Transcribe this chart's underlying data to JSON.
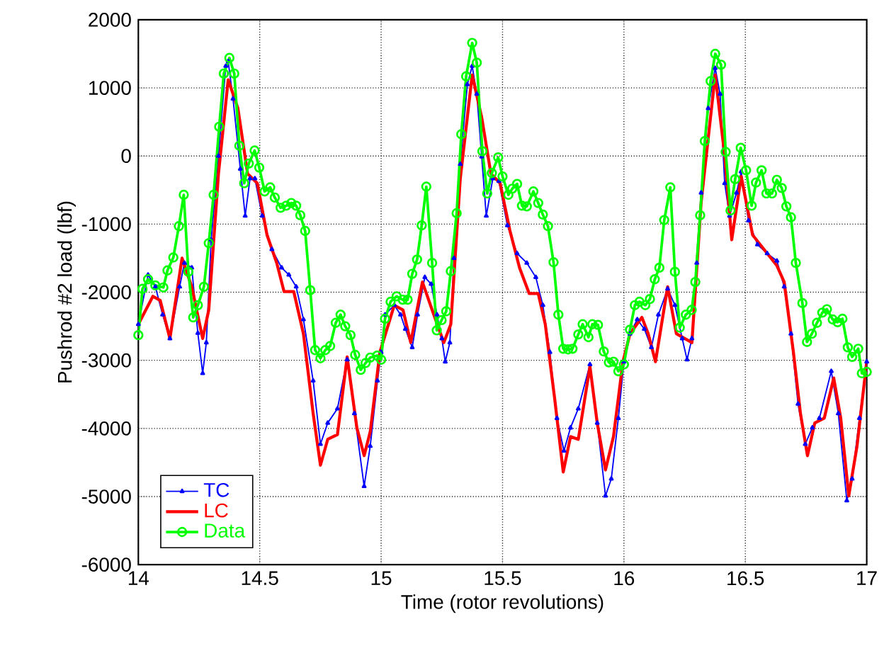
{
  "chart_data": {
    "type": "line",
    "xlabel": "Time (rotor revolutions)",
    "ylabel": "Pushrod #2 load  (lbf)",
    "xlim": [
      14,
      17
    ],
    "xticks": [
      14,
      14.5,
      15,
      15.5,
      16,
      16.5,
      17
    ],
    "ylim": [
      -6000,
      2000
    ],
    "yticks": [
      -6000,
      -5000,
      -4000,
      -3000,
      -2000,
      -1000,
      0,
      1000,
      2000
    ],
    "grid": true,
    "legend": "bottom left",
    "line_style": "solid",
    "series": [
      {
        "name": "TC",
        "color": "#0000ff",
        "marker": "triangle",
        "x": [
          14.0,
          14.04,
          14.07,
          14.1,
          14.13,
          14.17,
          14.19,
          14.22,
          14.245,
          14.265,
          14.28,
          14.3,
          14.33,
          14.36,
          14.37,
          14.39,
          14.42,
          14.44,
          14.46,
          14.48,
          14.51,
          14.55,
          14.59,
          14.62,
          14.65,
          14.68,
          14.72,
          14.75,
          14.78,
          14.82,
          14.86,
          14.89,
          14.93,
          14.955,
          14.985,
          15.0,
          15.016,
          15.054,
          15.08,
          15.1,
          15.128,
          15.15,
          15.18,
          15.206,
          15.23,
          15.25,
          15.264,
          15.283,
          15.3,
          15.326,
          15.355,
          15.375,
          15.394,
          15.414,
          15.433,
          15.46,
          15.485,
          15.52,
          15.56,
          15.6,
          15.637,
          15.666,
          15.695,
          15.724,
          15.753,
          15.78,
          15.812,
          15.86,
          15.89,
          15.924,
          15.948,
          15.977,
          16.0,
          16.025,
          16.055,
          16.084,
          16.113,
          16.142,
          16.18,
          16.21,
          16.24,
          16.26,
          16.28,
          16.3,
          16.318,
          16.347,
          16.376,
          16.396,
          16.415,
          16.435,
          16.464,
          16.483,
          16.513,
          16.55,
          16.59,
          16.63,
          16.66,
          16.688,
          16.717,
          16.747,
          16.776,
          16.805,
          16.854,
          16.883,
          16.918,
          16.94,
          16.97,
          17.0
        ],
        "values": [
          -2470,
          -1745,
          -1920,
          -2330,
          -2680,
          -1920,
          -1570,
          -1640,
          -2600,
          -3190,
          -2740,
          -1230,
          0,
          1320,
          1390,
          840,
          -190,
          -880,
          -330,
          -330,
          -880,
          -1370,
          -1640,
          -1745,
          -1920,
          -2400,
          -3300,
          -4230,
          -3920,
          -3710,
          -2990,
          -3780,
          -4850,
          -4260,
          -3300,
          -2880,
          -2330,
          -2190,
          -2330,
          -2540,
          -2810,
          -2330,
          -1780,
          -1880,
          -2330,
          -2680,
          -3020,
          -2740,
          -1500,
          -120,
          1050,
          1320,
          910,
          -10,
          -880,
          -330,
          -370,
          -1020,
          -1430,
          -1570,
          -1780,
          -2190,
          -2880,
          -3850,
          -4330,
          -3990,
          -3710,
          -3060,
          -3920,
          -4990,
          -4740,
          -3850,
          -3020,
          -2610,
          -2400,
          -2540,
          -2810,
          -2330,
          -1950,
          -2190,
          -2680,
          -2990,
          -2680,
          -1570,
          -540,
          700,
          1290,
          910,
          -400,
          -880,
          -540,
          -230,
          -950,
          -1300,
          -1430,
          -1540,
          -1920,
          -2610,
          -3640,
          -4230,
          -3990,
          -3850,
          -3160,
          -3780,
          -5060,
          -4740,
          -3850,
          -3020
        ]
      },
      {
        "name": "LC",
        "color": "#ff0000",
        "marker": "none",
        "x": [
          14.0,
          14.06,
          14.09,
          14.13,
          14.18,
          14.22,
          14.265,
          14.29,
          14.33,
          14.37,
          14.41,
          14.45,
          14.49,
          14.53,
          14.57,
          14.6,
          14.64,
          14.68,
          14.72,
          14.75,
          14.78,
          14.82,
          14.86,
          14.9,
          14.93,
          14.955,
          14.995,
          15.054,
          15.09,
          15.122,
          15.17,
          15.21,
          15.258,
          15.287,
          15.326,
          15.375,
          15.414,
          15.452,
          15.49,
          15.53,
          15.57,
          15.61,
          15.647,
          15.676,
          15.715,
          15.75,
          15.78,
          15.812,
          15.86,
          15.89,
          15.924,
          15.957,
          15.996,
          16.025,
          16.074,
          16.1,
          16.13,
          16.18,
          16.216,
          16.28,
          16.318,
          16.376,
          16.415,
          16.444,
          16.483,
          16.53,
          16.59,
          16.63,
          16.66,
          16.698,
          16.727,
          16.756,
          16.786,
          16.825,
          16.864,
          16.893,
          16.926,
          16.96,
          17.0
        ],
        "values": [
          -2470,
          -2060,
          -2120,
          -2680,
          -1500,
          -1920,
          -2680,
          -2260,
          -260,
          1120,
          700,
          -260,
          -400,
          -1160,
          -1570,
          -1990,
          -1990,
          -2610,
          -3780,
          -4540,
          -4160,
          -4090,
          -2950,
          -3990,
          -4400,
          -4050,
          -2880,
          -2190,
          -2260,
          -2740,
          -1850,
          -2260,
          -2740,
          -2470,
          -330,
          1190,
          570,
          -260,
          -400,
          -1090,
          -1640,
          -2020,
          -2020,
          -2470,
          -3570,
          -4640,
          -4120,
          -4160,
          -3090,
          -3920,
          -4610,
          -4120,
          -3020,
          -2610,
          -2370,
          -2610,
          -3020,
          -1920,
          -2610,
          -2740,
          -680,
          1190,
          10,
          -1230,
          -300,
          -1160,
          -1430,
          -1610,
          -1850,
          -2880,
          -3780,
          -4400,
          -3920,
          -3850,
          -3260,
          -3850,
          -4990,
          -4260,
          -3020
        ]
      },
      {
        "name": "Data",
        "color": "#00ff00",
        "marker": "circle",
        "x": [
          14.0,
          14.017,
          14.04,
          14.07,
          14.103,
          14.12,
          14.144,
          14.167,
          14.187,
          14.206,
          14.226,
          14.245,
          14.27,
          14.29,
          14.31,
          14.333,
          14.352,
          14.375,
          14.395,
          14.416,
          14.436,
          14.455,
          14.479,
          14.498,
          14.52,
          14.543,
          14.562,
          14.586,
          14.609,
          14.63,
          14.65,
          14.667,
          14.687,
          14.708,
          14.728,
          14.75,
          14.77,
          14.79,
          14.813,
          14.833,
          14.852,
          14.874,
          14.893,
          14.916,
          14.936,
          14.955,
          14.984,
          15.0,
          15.016,
          15.039,
          15.064,
          15.089,
          15.109,
          15.128,
          15.148,
          15.167,
          15.186,
          15.21,
          15.229,
          15.249,
          15.268,
          15.287,
          15.311,
          15.33,
          15.35,
          15.375,
          15.394,
          15.417,
          15.437,
          15.456,
          15.482,
          15.5,
          15.524,
          15.54,
          15.56,
          15.58,
          15.6,
          15.627,
          15.647,
          15.666,
          15.687,
          15.71,
          15.73,
          15.75,
          15.77,
          15.788,
          15.812,
          15.83,
          15.854,
          15.87,
          15.893,
          15.917,
          15.938,
          15.957,
          15.977,
          16.0,
          16.025,
          16.045,
          16.064,
          16.088,
          16.107,
          16.127,
          16.146,
          16.166,
          16.191,
          16.21,
          16.23,
          16.255,
          16.279,
          16.294,
          16.314,
          16.333,
          16.357,
          16.376,
          16.4,
          16.419,
          16.439,
          16.458,
          16.481,
          16.503,
          16.526,
          16.544,
          16.567,
          16.587,
          16.61,
          16.63,
          16.65,
          16.669,
          16.688,
          16.708,
          16.735,
          16.754,
          16.774,
          16.795,
          16.817,
          16.836,
          16.86,
          16.88,
          16.9,
          16.922,
          16.94,
          16.965,
          16.98,
          17.0
        ],
        "values": [
          -2630,
          -1950,
          -1810,
          -1900,
          -1930,
          -1680,
          -1490,
          -1030,
          -570,
          -1700,
          -2370,
          -2190,
          -1920,
          -1280,
          -570,
          430,
          1210,
          1440,
          1210,
          150,
          -400,
          -110,
          80,
          -170,
          -520,
          -460,
          -610,
          -760,
          -730,
          -690,
          -730,
          -870,
          -1100,
          -1970,
          -2850,
          -2970,
          -2850,
          -2790,
          -2450,
          -2330,
          -2500,
          -2630,
          -2920,
          -3140,
          -3040,
          -2960,
          -2930,
          -2990,
          -2390,
          -2140,
          -2060,
          -2110,
          -2110,
          -1730,
          -1520,
          -1020,
          -450,
          -1570,
          -2560,
          -2410,
          -2280,
          -1690,
          -840,
          320,
          1170,
          1660,
          1370,
          70,
          -550,
          -250,
          -20,
          -300,
          -570,
          -480,
          -410,
          -730,
          -740,
          -520,
          -690,
          -860,
          -1030,
          -1560,
          -2330,
          -2830,
          -2840,
          -2830,
          -2620,
          -2470,
          -2660,
          -2470,
          -2480,
          -2870,
          -3030,
          -3020,
          -3160,
          -3060,
          -2550,
          -2190,
          -2140,
          -2190,
          -2100,
          -1810,
          -1640,
          -940,
          -460,
          -1700,
          -2520,
          -2330,
          -2260,
          -1850,
          -870,
          220,
          1100,
          1500,
          1340,
          60,
          -800,
          -340,
          120,
          -210,
          -730,
          -390,
          -210,
          -550,
          -550,
          -350,
          -470,
          -740,
          -900,
          -1570,
          -2160,
          -2730,
          -2610,
          -2450,
          -2300,
          -2250,
          -2400,
          -2440,
          -2390,
          -2810,
          -2950,
          -2830,
          -3190,
          -3170
        ]
      }
    ]
  }
}
